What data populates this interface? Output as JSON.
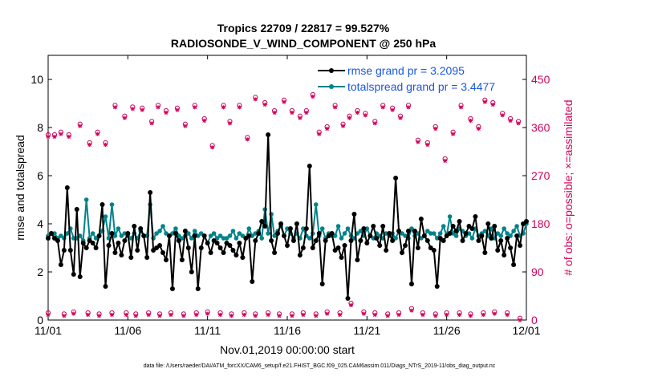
{
  "chart_data": {
    "type": "line",
    "title_line1": "Tropics 22709 / 22817 = 99.527%",
    "title_line2": "RADIOSONDE_V_WIND_COMPONENT @ 250 hPa",
    "xlabel": "Nov.01,2019 00:00:00 start",
    "ylabel_left": "rmse and totalspread",
    "ylabel_right": "# of obs: o=possible; ×=assimilated",
    "footnote": "data file: /Users/raeder/DAI/ATM_forcXX/CAM6_setup/f.e21.FHIST_BGC.f09_025.CAM6assim.011/Diags_NTrS_2019-11/obs_diag_output.nc",
    "x_tick_labels": [
      "11/01",
      "11/06",
      "11/11",
      "11/16",
      "11/21",
      "11/26",
      "12/01"
    ],
    "x_tick_days": [
      0,
      5,
      10,
      15,
      20,
      25,
      30
    ],
    "xlim_days": [
      0,
      30
    ],
    "ylim_left": [
      0,
      11
    ],
    "y_ticks_left": [
      "0",
      "2",
      "4",
      "6",
      "8",
      "10"
    ],
    "ylim_right": [
      0,
      495
    ],
    "y_ticks_right": [
      "0",
      "90",
      "180",
      "270",
      "360",
      "450"
    ],
    "series": [
      {
        "name": "rmse",
        "legend": "rmse grand pr = 3.2095",
        "color": "#000000",
        "values": [
          3.4,
          3.6,
          3.4,
          3.3,
          2.3,
          2.9,
          5.5,
          2.9,
          1.9,
          4.6,
          1.8,
          3.2,
          3.0,
          3.3,
          3.2,
          3.0,
          3.5,
          4.8,
          1.4,
          3.1,
          3.6,
          2.8,
          3.2,
          2.7,
          3.3,
          3.6,
          2.6,
          3.9,
          2.9,
          3.8,
          3.5,
          2.6,
          5.3,
          2.9,
          3.0,
          3.1,
          2.8,
          2.5,
          3.5,
          1.3,
          3.6,
          3.3,
          2.5,
          3.7,
          3.0,
          2.0,
          3.5,
          1.3,
          3.0,
          3.5,
          3.2,
          2.8,
          3.3,
          3.2,
          3.0,
          2.8,
          3.2,
          3.1,
          2.9,
          2.7,
          3.2,
          2.6,
          3.4,
          3.5,
          1.6,
          3.3,
          3.6,
          4.1,
          3.9,
          7.7,
          3.3,
          2.8,
          3.6,
          4.0,
          3.5,
          3.1,
          3.8,
          3.3,
          4.0,
          2.7,
          3.0,
          3.8,
          6.4,
          3.0,
          3.3,
          3.6,
          1.5,
          3.3,
          3.5,
          3.6,
          2.9,
          3.0,
          2.6,
          3.1,
          0.9,
          3.3,
          4.4,
          2.5,
          3.3,
          3.8,
          3.2,
          3.5,
          3.9,
          3.4,
          3.1,
          3.9,
          2.9,
          3.6,
          3.3,
          5.9,
          3.7,
          2.8,
          3.1,
          3.7,
          1.5,
          3.7,
          3.0,
          4.2,
          3.5,
          3.3,
          3.0,
          2.9,
          1.4,
          3.4,
          3.3,
          3.5,
          3.6,
          3.9,
          3.7,
          4.1,
          3.3,
          3.6,
          3.9,
          3.8,
          4.3,
          3.3,
          3.5,
          2.8,
          4.0,
          3.4,
          3.9,
          2.9,
          3.3,
          2.7,
          3.4,
          3.0,
          2.3,
          3.5,
          3.1,
          4.0,
          4.1
        ],
        "x_start_day": 0,
        "x_step_days": 0.2
      },
      {
        "name": "totalspread",
        "legend": "totalspread grand pr = 3.4477",
        "color": "#00838a",
        "values": [
          3.5,
          3.6,
          3.6,
          3.4,
          3.5,
          3.4,
          3.6,
          3.8,
          3.4,
          3.4,
          3.5,
          3.3,
          5.0,
          3.4,
          3.6,
          3.4,
          3.5,
          3.7,
          4.3,
          3.4,
          4.8,
          3.5,
          3.8,
          3.5,
          3.6,
          3.5,
          3.4,
          3.6,
          3.4,
          3.7,
          3.5,
          3.5,
          4.8,
          3.4,
          3.6,
          3.7,
          3.9,
          3.6,
          3.5,
          3.6,
          3.8,
          3.5,
          3.4,
          3.5,
          3.6,
          3.4,
          3.7,
          3.5,
          3.6,
          3.5,
          3.2,
          3.5,
          3.6,
          3.4,
          3.5,
          3.4,
          3.4,
          3.5,
          3.7,
          3.4,
          3.6,
          3.5,
          3.4,
          3.8,
          3.5,
          3.6,
          3.7,
          3.4,
          4.6,
          3.6,
          4.4,
          3.5,
          3.7,
          3.9,
          3.5,
          3.8,
          3.6,
          3.4,
          3.6,
          3.4,
          3.8,
          3.5,
          3.4,
          3.6,
          4.8,
          3.5,
          3.8,
          3.4,
          3.6,
          3.5,
          3.5,
          3.9,
          3.4,
          3.6,
          3.8,
          3.5,
          3.4,
          3.6,
          3.7,
          3.5,
          3.8,
          3.5,
          3.4,
          3.6,
          3.5,
          3.4,
          3.6,
          3.5,
          3.6,
          3.4,
          3.7,
          3.6,
          3.5,
          3.4,
          3.8,
          3.5,
          3.6,
          3.4,
          3.5,
          3.7,
          3.6,
          3.6,
          3.4,
          3.6,
          3.9,
          3.5,
          4.3,
          3.6,
          3.5,
          3.8,
          3.7,
          3.5,
          3.6,
          3.4,
          3.8,
          3.5,
          3.6,
          3.7,
          3.5,
          3.8,
          3.4,
          3.6,
          3.5,
          3.8,
          3.6,
          3.5,
          3.7,
          3.9,
          3.5,
          3.6,
          4.0
        ],
        "x_start_day": 0,
        "x_step_days": 0.2
      }
    ],
    "obs_counts": {
      "color": "#d1005a",
      "upper_x_days": [
        0.0,
        0.4,
        0.8,
        1.3,
        2.0,
        2.6,
        3.1,
        3.6,
        4.2,
        4.8,
        5.3,
        5.9,
        6.5,
        6.9,
        7.4,
        8.1,
        8.6,
        9.2,
        9.8,
        10.3,
        11.0,
        11.4,
        12.0,
        12.5,
        13.0,
        13.6,
        14.2,
        14.8,
        15.3,
        15.8,
        16.2,
        16.6,
        17.0,
        17.5,
        18.0,
        18.5,
        18.9,
        19.4,
        19.9,
        20.5,
        21.0,
        21.6,
        22.1,
        22.6,
        23.2,
        23.8,
        24.3,
        24.9,
        25.4,
        25.9,
        26.5,
        27.0,
        27.4,
        27.9,
        28.5,
        29.0,
        29.5
      ],
      "upper_values": [
        345,
        345,
        350,
        345,
        365,
        330,
        350,
        330,
        400,
        380,
        397,
        395,
        370,
        400,
        390,
        395,
        365,
        400,
        375,
        325,
        400,
        370,
        400,
        340,
        415,
        405,
        390,
        410,
        390,
        380,
        390,
        420,
        350,
        360,
        400,
        365,
        380,
        390,
        385,
        370,
        400,
        395,
        380,
        400,
        335,
        330,
        360,
        300,
        350,
        400,
        375,
        360,
        410,
        405,
        385,
        375,
        370
      ],
      "lower_x_days": [
        0.0,
        1.0,
        1.6,
        2.5,
        3.2,
        4.0,
        4.9,
        5.5,
        6.3,
        7.0,
        7.7,
        8.5,
        9.3,
        10.0,
        10.8,
        11.5,
        12.3,
        13.0,
        13.8,
        14.5,
        15.3,
        16.0,
        16.8,
        17.5,
        18.3,
        19.0,
        19.8,
        20.5,
        21.3,
        22.0,
        22.8,
        23.5,
        24.3,
        25.0,
        25.8,
        26.5,
        27.3,
        28.0,
        28.8,
        29.6
      ],
      "lower_values": [
        12,
        10,
        14,
        12,
        10,
        12,
        12,
        10,
        12,
        10,
        12,
        10,
        12,
        14,
        12,
        10,
        12,
        10,
        12,
        10,
        10,
        12,
        10,
        14,
        12,
        30,
        14,
        12,
        10,
        12,
        20,
        12,
        10,
        12,
        12,
        10,
        12,
        14,
        12,
        2
      ]
    }
  }
}
